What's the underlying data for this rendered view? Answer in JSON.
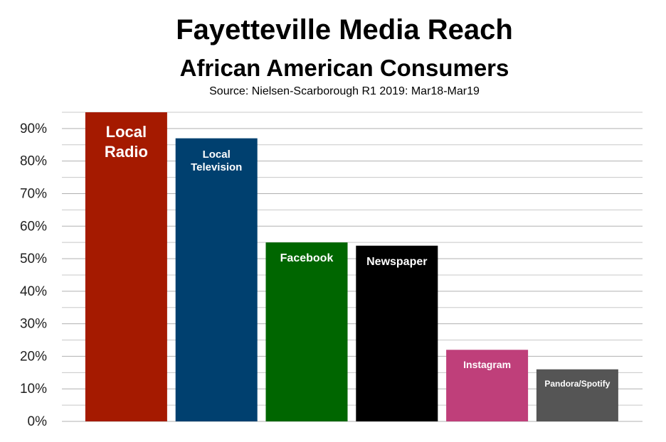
{
  "chart_data": {
    "type": "bar",
    "title": "Fayetteville Media Reach",
    "subtitle": "African American Consumers",
    "source": "Source: Nielsen-Scarborough R1 2019: Mar18-Mar19",
    "categories": [
      "Local Radio",
      "Local Television",
      "Facebook",
      "Newspaper",
      "Instagram",
      "Pandora/Spotify"
    ],
    "values": [
      95,
      87,
      55,
      54,
      22,
      16
    ],
    "colors": [
      "#a51a00",
      "#00406f",
      "#006600",
      "#000000",
      "#bf3f7a",
      "#555555"
    ],
    "ylim": [
      0,
      95
    ],
    "yticks": [
      {
        "value": 0,
        "label": "0%"
      },
      {
        "value": 10,
        "label": "10%"
      },
      {
        "value": 20,
        "label": "20%"
      },
      {
        "value": 30,
        "label": "30%"
      },
      {
        "value": 40,
        "label": "40%"
      },
      {
        "value": 50,
        "label": "50%"
      },
      {
        "value": 60,
        "label": "60%"
      },
      {
        "value": 70,
        "label": "70%"
      },
      {
        "value": 80,
        "label": "80%"
      },
      {
        "value": 90,
        "label": "90%"
      }
    ],
    "minor_yticks": [
      5,
      15,
      25,
      35,
      45,
      55,
      65,
      75,
      85,
      95
    ],
    "grid": true
  }
}
